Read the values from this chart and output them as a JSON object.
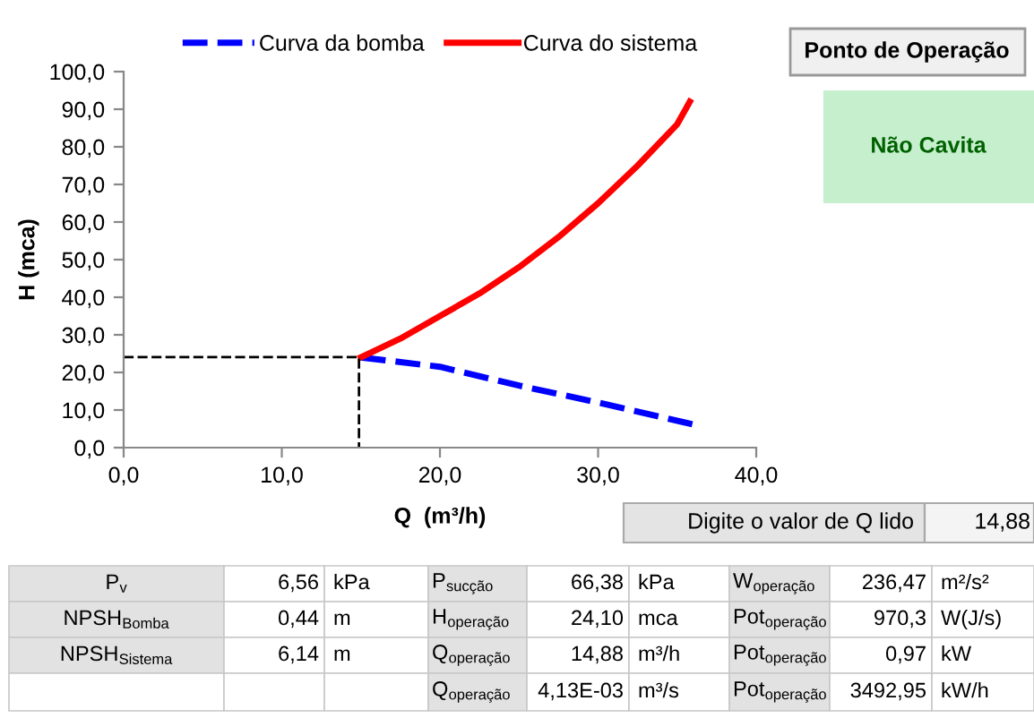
{
  "chart_data": {
    "type": "line",
    "xlabel": "Q  (m³/h)",
    "ylabel": "H (mca)",
    "series": [
      {
        "name": "Curva da bomba",
        "color": "#0000ff",
        "line_style": "dashed",
        "x": [
          15,
          20,
          25,
          30,
          36.2
        ],
        "values": [
          24,
          21.5,
          16.5,
          12,
          6
        ]
      },
      {
        "name": "Curva do sistema",
        "color": "#ff0000",
        "line_style": "solid",
        "x": [
          15,
          17.5,
          20,
          22.5,
          25,
          27.5,
          30,
          32.5,
          35,
          35.8
        ],
        "values": [
          24,
          29,
          35,
          41,
          48,
          56,
          65,
          75,
          86,
          92
        ]
      },
      {
        "color": "#000000",
        "line_style": "dashed",
        "x": [
          0,
          14.88,
          14.88
        ],
        "values": [
          24.1,
          24.1,
          0
        ]
      }
    ],
    "xlim": [
      0,
      40
    ],
    "ylim": [
      0,
      100
    ],
    "xticks": [
      {
        "value": 0,
        "label": "0,0"
      },
      {
        "value": 10,
        "label": "10,0"
      },
      {
        "value": 20,
        "label": "20,0"
      },
      {
        "value": 30,
        "label": "30,0"
      },
      {
        "value": 40,
        "label": "40,0"
      }
    ],
    "yticks": [
      {
        "value": 0,
        "label": "0,0"
      },
      {
        "value": 10,
        "label": "10,0"
      },
      {
        "value": 20,
        "label": "20,0"
      },
      {
        "value": 30,
        "label": "30,0"
      },
      {
        "value": 40,
        "label": "40,0"
      },
      {
        "value": 50,
        "label": "50,0"
      },
      {
        "value": 60,
        "label": "60,0"
      },
      {
        "value": 70,
        "label": "70,0"
      },
      {
        "value": 80,
        "label": "80,0"
      },
      {
        "value": 90,
        "label": "90,0"
      },
      {
        "value": 100,
        "label": "100,0"
      }
    ],
    "grid": false,
    "legend": "top",
    "marker": "none",
    "annotations": [
      "Ponto de Operação",
      "Não Cavita",
      "Digite o valor de Q lido",
      "14,88",
      "P$_{v}$",
      "6,56",
      "kPa",
      "P$_{sucção}$",
      "66,38",
      "kPa",
      "W$_{operação}$",
      "236,47",
      "m²/s²",
      "NPSH$_{Bomba}$",
      "0,44",
      "m",
      "H$_{operação}$",
      "24,10",
      "mca",
      "Pot$_{operação}$",
      "970,3",
      "W(J/s)",
      "NPSH$_{Sistema}$",
      "6,14",
      "m",
      "Q$_{operação}$",
      "14,88",
      "m³/h",
      "Pot$_{operação}$",
      "0,97",
      "kW",
      "Q$_{operação}$",
      "4,13E-03",
      "m³/s",
      "Pot$_{operação}$",
      "3492,95",
      "kW/h"
    ]
  }
}
